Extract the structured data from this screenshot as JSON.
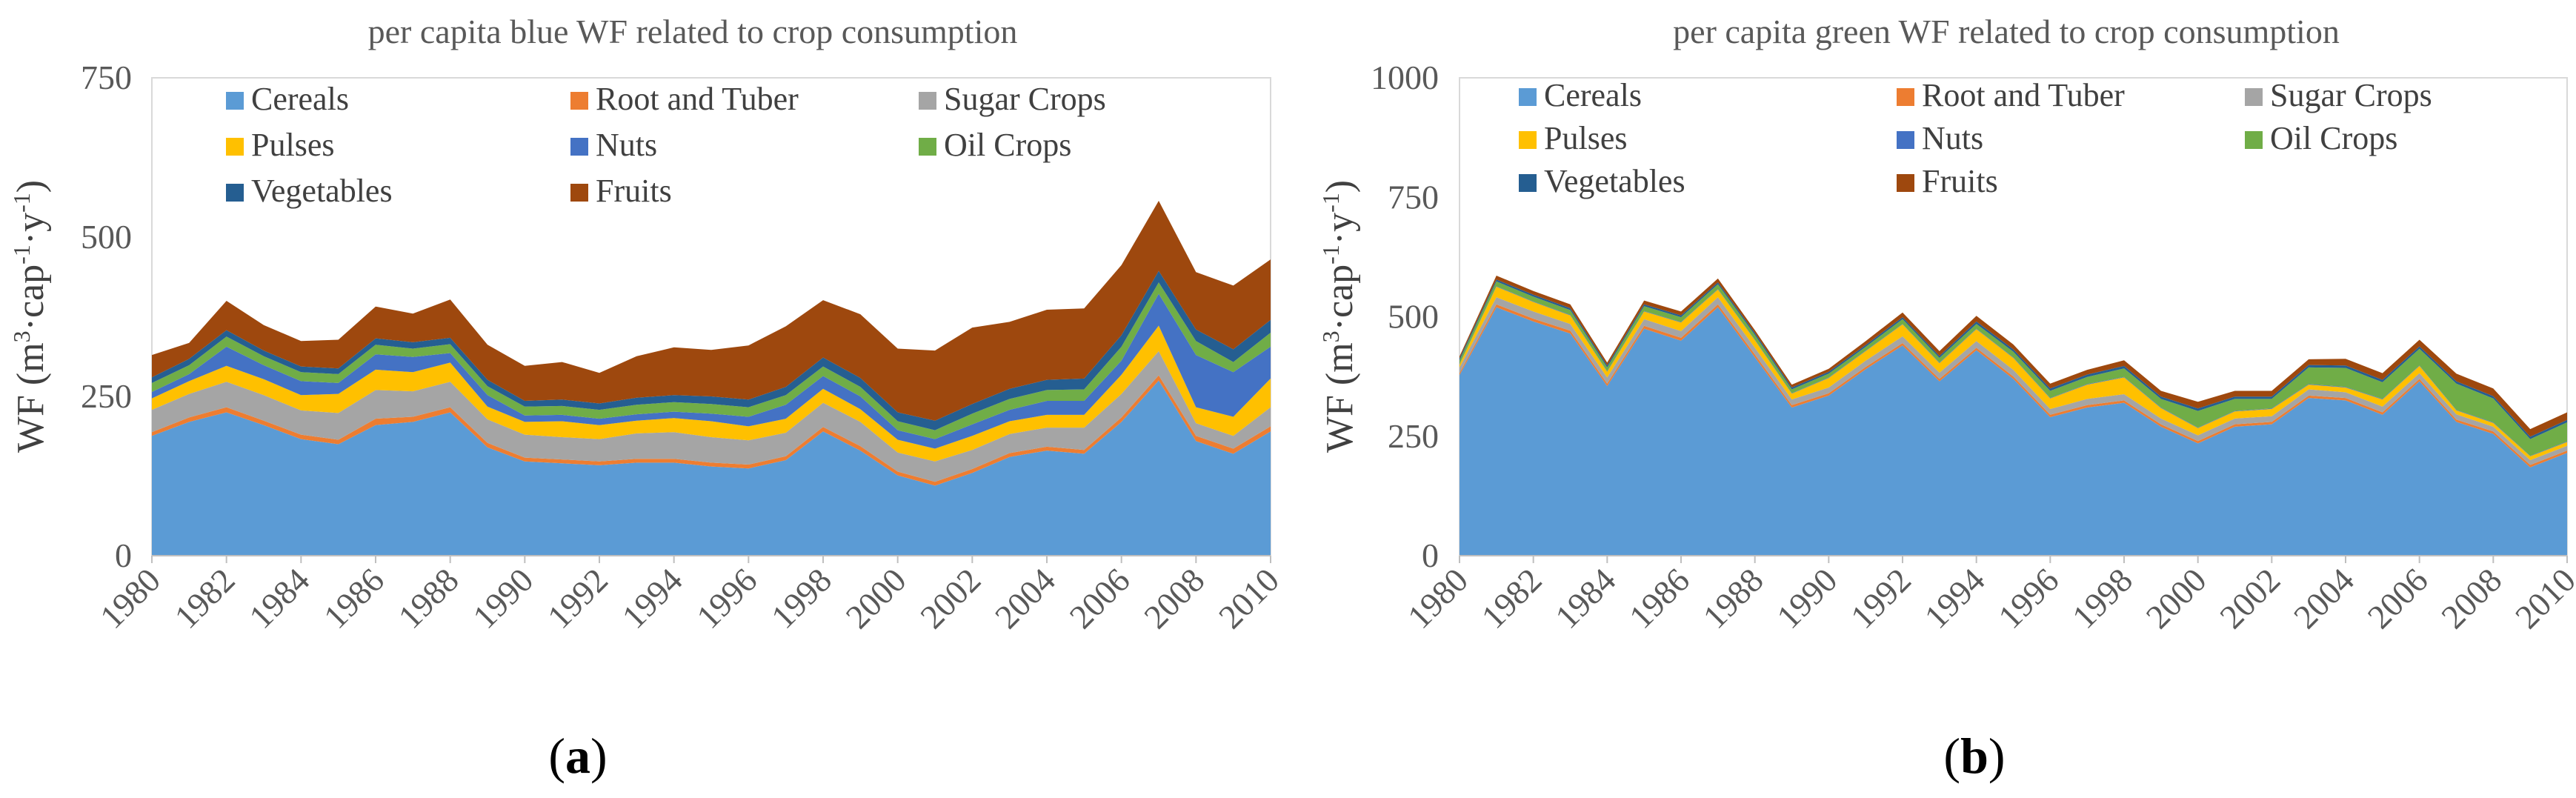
{
  "colors": {
    "Cereals": "#5b9bd5",
    "Root and Tuber": "#ed7d31",
    "Sugar Crops": "#a5a5a5",
    "Pulses": "#ffc000",
    "Nuts": "#4472c4",
    "Oil Crops": "#70ad47",
    "Vegetables": "#255e91",
    "Fruits": "#9e480e"
  },
  "panels": [
    {
      "open": "(",
      "letter": "a",
      "close": ")"
    },
    {
      "open": "(",
      "letter": "b",
      "close": ")"
    }
  ],
  "chart_data": [
    {
      "type": "area",
      "stacked": true,
      "title": "per capita blue WF related to crop consumption",
      "xlabel": "",
      "ylabel_prefix": "WF (m",
      "ylabel_sup1": "3",
      "ylabel_mid1": "·cap",
      "ylabel_sup2": "-1",
      "ylabel_mid2": "·y",
      "ylabel_sup3": "-1",
      "ylabel_suffix": ")",
      "ylim": [
        0,
        750
      ],
      "yticks": [
        0,
        250,
        500,
        750
      ],
      "x": [
        1980,
        1981,
        1982,
        1983,
        1984,
        1985,
        1986,
        1987,
        1988,
        1989,
        1990,
        1991,
        1992,
        1993,
        1994,
        1995,
        1996,
        1997,
        1998,
        1999,
        2000,
        2001,
        2002,
        2003,
        2004,
        2005,
        2006,
        2007,
        2008,
        2009,
        2010
      ],
      "xtick_labels": [
        "1980",
        "1982",
        "1984",
        "1986",
        "1988",
        "1990",
        "1992",
        "1994",
        "1996",
        "1998",
        "2000",
        "2002",
        "2004",
        "2006",
        "2008",
        "2010"
      ],
      "legend": [
        "Cereals",
        "Root and Tuber",
        "Sugar Crops",
        "Pulses",
        "Nuts",
        "Oil Crops",
        "Vegetables",
        "Fruits"
      ],
      "series": [
        {
          "name": "Cereals",
          "values": [
            188,
            210,
            225,
            205,
            183,
            175,
            205,
            210,
            225,
            170,
            148,
            145,
            142,
            146,
            146,
            140,
            137,
            150,
            195,
            165,
            126,
            110,
            130,
            155,
            165,
            160,
            210,
            275,
            180,
            160,
            195
          ]
        },
        {
          "name": "Root and Tuber",
          "values": [
            6,
            7,
            8,
            7,
            7,
            7,
            10,
            8,
            8,
            7,
            6,
            6,
            6,
            6,
            6,
            6,
            6,
            6,
            7,
            7,
            6,
            6,
            6,
            6,
            6,
            6,
            7,
            8,
            8,
            8,
            8
          ]
        },
        {
          "name": "Sugar Crops",
          "values": [
            35,
            37,
            40,
            40,
            38,
            42,
            45,
            40,
            40,
            37,
            36,
            35,
            35,
            40,
            42,
            40,
            38,
            37,
            38,
            38,
            30,
            32,
            30,
            30,
            30,
            35,
            37,
            38,
            20,
            20,
            30
          ]
        },
        {
          "name": "Pulses",
          "values": [
            18,
            20,
            25,
            25,
            24,
            30,
            32,
            30,
            30,
            20,
            20,
            25,
            22,
            20,
            22,
            25,
            22,
            22,
            22,
            20,
            20,
            20,
            22,
            20,
            20,
            20,
            30,
            40,
            25,
            30,
            45
          ]
        },
        {
          "name": "Nuts",
          "values": [
            10,
            11,
            30,
            22,
            22,
            17,
            24,
            24,
            15,
            18,
            10,
            10,
            10,
            10,
            10,
            12,
            15,
            22,
            20,
            20,
            15,
            15,
            18,
            18,
            22,
            22,
            22,
            50,
            82,
            70,
            50
          ]
        },
        {
          "name": "Oil Crops",
          "values": [
            14,
            14,
            16,
            14,
            14,
            14,
            15,
            13,
            14,
            14,
            14,
            14,
            14,
            15,
            15,
            15,
            15,
            15,
            15,
            15,
            14,
            14,
            17,
            17,
            17,
            18,
            22,
            18,
            22,
            16,
            22
          ]
        },
        {
          "name": "Vegetables",
          "values": [
            9,
            10,
            10,
            9,
            9,
            9,
            10,
            10,
            10,
            10,
            9,
            10,
            10,
            11,
            11,
            12,
            12,
            13,
            14,
            14,
            14,
            15,
            15,
            16,
            16,
            17,
            18,
            18,
            18,
            20,
            20
          ]
        },
        {
          "name": "Fruits",
          "values": [
            35,
            25,
            46,
            40,
            40,
            45,
            50,
            45,
            60,
            55,
            55,
            59,
            48,
            65,
            75,
            73,
            85,
            95,
            90,
            100,
            100,
            110,
            120,
            105,
            110,
            110,
            110,
            110,
            90,
            100,
            95
          ]
        }
      ]
    },
    {
      "type": "area",
      "stacked": true,
      "title": "per capita green WF related to crop consumption",
      "xlabel": "",
      "ylabel_prefix": "WF (m",
      "ylabel_sup1": "3",
      "ylabel_mid1": "·cap",
      "ylabel_sup2": "-1",
      "ylabel_mid2": "·y",
      "ylabel_sup3": "-1",
      "ylabel_suffix": ")",
      "ylim": [
        0,
        1000
      ],
      "yticks": [
        0,
        250,
        500,
        750,
        1000
      ],
      "x": [
        1980,
        1981,
        1982,
        1983,
        1984,
        1985,
        1986,
        1987,
        1988,
        1989,
        1990,
        1991,
        1992,
        1993,
        1994,
        1995,
        1996,
        1997,
        1998,
        1999,
        2000,
        2001,
        2002,
        2003,
        2004,
        2005,
        2006,
        2007,
        2008,
        2009,
        2010
      ],
      "xtick_labels": [
        "1980",
        "1982",
        "1984",
        "1986",
        "1988",
        "1990",
        "1992",
        "1994",
        "1996",
        "1998",
        "2000",
        "2002",
        "2004",
        "2006",
        "2008",
        "2010"
      ],
      "legend": [
        "Cereals",
        "Root and Tuber",
        "Sugar Crops",
        "Pulses",
        "Nuts",
        "Oil Crops",
        "Vegetables",
        "Fruits"
      ],
      "series": [
        {
          "name": "Cereals",
          "values": [
            378,
            520,
            490,
            465,
            355,
            475,
            450,
            520,
            415,
            310,
            335,
            390,
            440,
            365,
            430,
            370,
            290,
            310,
            320,
            270,
            235,
            270,
            275,
            330,
            325,
            295,
            365,
            280,
            255,
            185,
            215
          ]
        },
        {
          "name": "Root and Tuber",
          "values": [
            4,
            6,
            6,
            6,
            5,
            6,
            6,
            6,
            6,
            5,
            5,
            5,
            5,
            5,
            5,
            5,
            5,
            5,
            5,
            5,
            5,
            5,
            5,
            5,
            5,
            5,
            5,
            5,
            5,
            5,
            5
          ]
        },
        {
          "name": "Sugar Crops",
          "values": [
            12,
            15,
            15,
            14,
            13,
            14,
            14,
            15,
            14,
            12,
            12,
            13,
            14,
            13,
            14,
            14,
            12,
            13,
            13,
            12,
            12,
            12,
            12,
            13,
            12,
            12,
            12,
            11,
            10,
            10,
            10
          ]
        },
        {
          "name": "Pulses",
          "values": [
            6,
            22,
            20,
            18,
            12,
            16,
            18,
            16,
            16,
            12,
            20,
            20,
            25,
            20,
            25,
            25,
            22,
            30,
            35,
            22,
            15,
            15,
            15,
            10,
            10,
            15,
            15,
            8,
            8,
            8,
            8
          ]
        },
        {
          "name": "Nuts",
          "values": [
            1,
            1,
            1,
            1,
            1,
            1,
            1,
            1,
            1,
            1,
            1,
            1,
            1,
            1,
            1,
            1,
            1,
            1,
            1,
            1,
            1,
            1,
            1,
            1,
            1,
            1,
            1,
            1,
            1,
            1,
            1
          ]
        },
        {
          "name": "Oil Crops",
          "values": [
            8,
            10,
            10,
            10,
            8,
            10,
            10,
            10,
            10,
            8,
            8,
            8,
            10,
            10,
            10,
            12,
            15,
            15,
            18,
            18,
            35,
            25,
            20,
            35,
            40,
            35,
            35,
            55,
            50,
            35,
            40
          ]
        },
        {
          "name": "Vegetables",
          "values": [
            4,
            4,
            4,
            4,
            4,
            4,
            4,
            4,
            4,
            4,
            4,
            4,
            4,
            4,
            5,
            5,
            5,
            5,
            5,
            5,
            5,
            5,
            5,
            5,
            5,
            5,
            5,
            5,
            5,
            5,
            5
          ]
        },
        {
          "name": "Fruits",
          "values": [
            4,
            8,
            8,
            8,
            6,
            8,
            8,
            8,
            6,
            6,
            6,
            8,
            10,
            10,
            12,
            10,
            10,
            10,
            12,
            12,
            14,
            12,
            12,
            12,
            14,
            14,
            14,
            16,
            16,
            16,
            16
          ]
        }
      ]
    }
  ]
}
